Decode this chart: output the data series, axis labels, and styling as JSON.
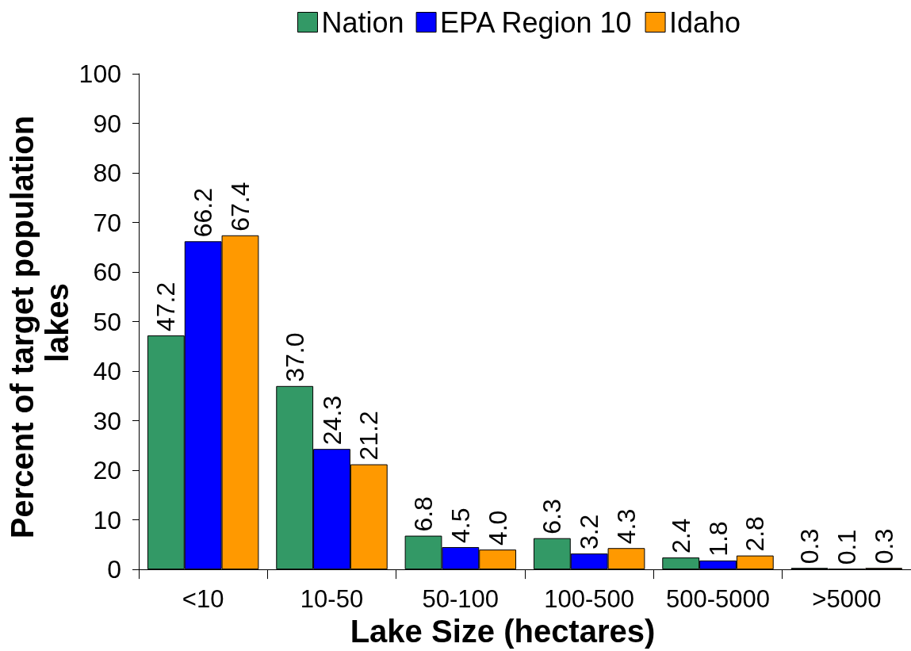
{
  "chart_data": {
    "type": "bar",
    "xlabel": "Lake Size (hectares)",
    "ylabel": "Percent of target population lakes",
    "categories": [
      "<10",
      "10-50",
      "50-100",
      "100-500",
      "500-5000",
      ">5000"
    ],
    "series": [
      {
        "name": "Nation",
        "color": "#339966",
        "values": [
          47.2,
          37.0,
          6.8,
          6.3,
          2.4,
          0.3
        ],
        "value_labels": [
          "47.2",
          "37.0",
          "6.8",
          "6.3",
          "2.4",
          "0.3"
        ]
      },
      {
        "name": "EPA Region 10",
        "color": "#0000ff",
        "values": [
          66.2,
          24.3,
          4.5,
          3.2,
          1.8,
          0.1
        ],
        "value_labels": [
          "66.2",
          "24.3",
          "4.5",
          "3.2",
          "1.8",
          "0.1"
        ]
      },
      {
        "name": "Idaho",
        "color": "#ff9900",
        "values": [
          67.4,
          21.2,
          4.0,
          4.3,
          2.8,
          0.3
        ],
        "value_labels": [
          "67.4",
          "21.2",
          "4.0",
          "4.3",
          "2.8",
          "0.3"
        ]
      }
    ],
    "ylim": [
      0,
      100
    ],
    "yticks": [
      0,
      10,
      20,
      30,
      40,
      50,
      60,
      70,
      80,
      90,
      100
    ],
    "grid": false,
    "legend": "top"
  }
}
